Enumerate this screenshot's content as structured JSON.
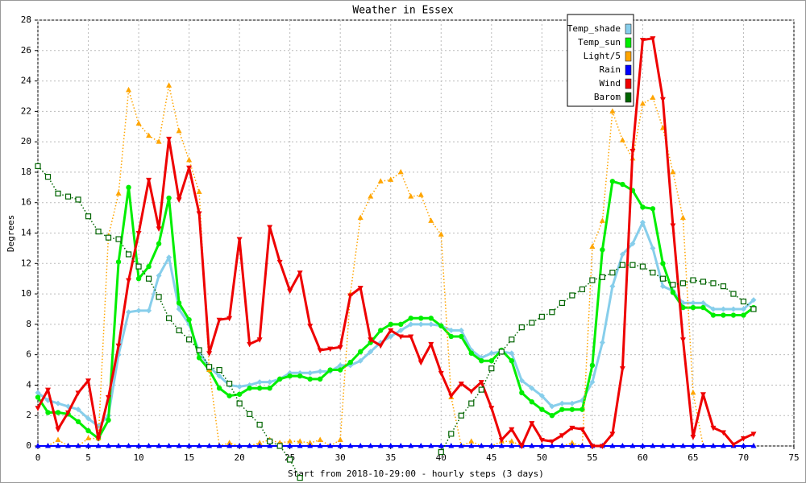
{
  "chart_data": {
    "type": "line",
    "title": "Weather in Essex",
    "x_label": "Start from 2018-10-29:00 - hourly steps (3 days)",
    "y_label": "Degrees",
    "x": [
      0,
      1,
      2,
      3,
      4,
      5,
      6,
      7,
      8,
      9,
      10,
      11,
      12,
      13,
      14,
      15,
      16,
      17,
      18,
      19,
      20,
      21,
      22,
      23,
      24,
      25,
      26,
      27,
      28,
      29,
      30,
      31,
      32,
      33,
      34,
      35,
      36,
      37,
      38,
      39,
      40,
      41,
      42,
      43,
      44,
      45,
      46,
      47,
      48,
      49,
      50,
      51,
      52,
      53,
      54,
      55,
      56,
      57,
      58,
      59,
      60,
      61,
      62,
      63,
      64,
      65,
      66,
      67,
      68,
      69,
      70,
      71
    ],
    "xlim": [
      0,
      75
    ],
    "xticks": [
      0,
      5,
      10,
      15,
      20,
      25,
      30,
      35,
      40,
      45,
      50,
      55,
      60,
      65,
      70,
      75
    ],
    "ylim": [
      0,
      28
    ],
    "yticks": [
      0,
      2,
      4,
      6,
      8,
      10,
      12,
      14,
      16,
      18,
      20,
      22,
      24,
      26,
      28
    ],
    "grid": true,
    "legend": "top-right",
    "series": [
      {
        "name": "Temp_shade",
        "color": "#87ceeb",
        "marker": "diamond",
        "line_style": "solid",
        "values": [
          3.5,
          3.0,
          2.8,
          2.6,
          2.4,
          1.8,
          1.3,
          2.0,
          6.0,
          8.8,
          8.9,
          8.9,
          11.2,
          12.4,
          9.0,
          8.0,
          6.2,
          5.2,
          4.6,
          4.0,
          3.9,
          4.0,
          4.2,
          4.2,
          4.4,
          4.8,
          4.8,
          4.8,
          4.9,
          4.9,
          5.3,
          5.3,
          5.6,
          6.2,
          6.8,
          7.2,
          7.6,
          8.0,
          8.0,
          8.0,
          7.9,
          7.6,
          7.6,
          6.3,
          5.8,
          6.1,
          6.2,
          6.1,
          4.3,
          3.8,
          3.3,
          2.6,
          2.8,
          2.8,
          3.0,
          4.2,
          6.8,
          10.5,
          12.6,
          13.3,
          14.7,
          13.0,
          10.5,
          10.2,
          9.4,
          9.4,
          9.4,
          9.0,
          9.0,
          9.0,
          9.0,
          9.6
        ]
      },
      {
        "name": "Temp_sun",
        "color": "#00ee00",
        "marker": "circle",
        "line_style": "solid",
        "values": [
          3.2,
          2.2,
          2.2,
          2.1,
          1.6,
          1.0,
          0.5,
          1.7,
          12.1,
          17.0,
          11.0,
          11.8,
          13.3,
          16.3,
          9.4,
          8.3,
          5.8,
          5.0,
          3.8,
          3.3,
          3.4,
          3.8,
          3.8,
          3.8,
          4.4,
          4.6,
          4.6,
          4.4,
          4.4,
          5.0,
          5.0,
          5.5,
          6.2,
          6.8,
          7.6,
          8.0,
          8.0,
          8.4,
          8.4,
          8.4,
          7.9,
          7.2,
          7.2,
          6.1,
          5.6,
          5.6,
          6.3,
          5.6,
          3.5,
          2.9,
          2.4,
          2.0,
          2.4,
          2.4,
          2.4,
          5.3,
          12.9,
          17.4,
          17.2,
          16.8,
          15.7,
          15.6,
          12.0,
          10.1,
          9.1,
          9.1,
          9.1,
          8.6,
          8.6,
          8.6,
          8.6,
          9.1
        ]
      },
      {
        "name": "Light/5",
        "color": "#ffa500",
        "marker": "triangle-up",
        "line_style": "dotted",
        "values": [
          0,
          0,
          0.4,
          0,
          0,
          0.5,
          0.5,
          13.8,
          16.6,
          23.4,
          21.2,
          20.4,
          20.0,
          23.7,
          20.7,
          18.8,
          16.7,
          5.0,
          0,
          0.2,
          0,
          0,
          0.2,
          0.4,
          0.2,
          0.3,
          0.3,
          0.2,
          0.4,
          0,
          0.4,
          10.0,
          15.0,
          16.4,
          17.4,
          17.5,
          18.0,
          16.4,
          16.5,
          14.8,
          13.9,
          3.2,
          0,
          0.3,
          0,
          0,
          0.3,
          0.3,
          0,
          0,
          0,
          0,
          0,
          0.2,
          0,
          13.1,
          14.8,
          22.0,
          20.1,
          18.9,
          22.5,
          22.9,
          20.9,
          18.0,
          15.0,
          3.5,
          0,
          0,
          0,
          0,
          0,
          0
        ]
      },
      {
        "name": "Rain",
        "color": "#0000ff",
        "marker": "triangle-up",
        "line_style": "solid",
        "values": [
          0,
          0,
          0,
          0,
          0,
          0,
          0,
          0,
          0,
          0,
          0,
          0,
          0,
          0,
          0,
          0,
          0,
          0,
          0,
          0,
          0,
          0,
          0,
          0,
          0,
          0,
          0,
          0,
          0,
          0,
          0,
          0,
          0,
          0,
          0,
          0,
          0,
          0,
          0,
          0,
          0,
          0,
          0,
          0,
          0,
          0,
          0,
          0,
          0,
          0,
          0,
          0,
          0,
          0,
          0,
          0,
          0,
          0,
          0,
          0,
          0,
          0,
          0,
          0,
          0,
          0,
          0,
          0,
          0,
          0,
          0,
          0
        ]
      },
      {
        "name": "Wind",
        "color": "#ee0000",
        "marker": "triangle-down",
        "line_style": "solid",
        "values": [
          2.5,
          3.7,
          1.1,
          2.2,
          3.5,
          4.3,
          0.5,
          3.2,
          6.6,
          10.9,
          14.0,
          17.5,
          14.3,
          20.2,
          16.2,
          18.3,
          15.3,
          6.1,
          8.3,
          8.4,
          13.6,
          6.7,
          7.0,
          14.4,
          12.1,
          10.2,
          11.4,
          7.9,
          6.3,
          6.4,
          6.5,
          9.9,
          10.4,
          7.0,
          6.6,
          7.6,
          7.2,
          7.2,
          5.5,
          6.7,
          4.8,
          3.3,
          4.1,
          3.6,
          4.2,
          2.5,
          0.4,
          1.1,
          0,
          1.5,
          0.4,
          0.3,
          0.7,
          1.2,
          1.1,
          0,
          0,
          0.8,
          5.1,
          19.4,
          26.7,
          26.8,
          22.8,
          14.5,
          7.0,
          0.6,
          3.4,
          1.2,
          0.9,
          0.1,
          0.5,
          0.8
        ]
      },
      {
        "name": "Barom",
        "color": "#006400",
        "marker": "square",
        "line_style": "dotted",
        "values": [
          18.4,
          17.7,
          16.6,
          16.4,
          16.2,
          15.1,
          14.1,
          13.7,
          13.6,
          12.6,
          11.8,
          11.0,
          9.8,
          8.4,
          7.6,
          7.0,
          6.3,
          5.2,
          5.0,
          4.1,
          2.8,
          2.1,
          1.4,
          0.3,
          0.0,
          -0.9,
          -2.1,
          null,
          null,
          null,
          null,
          null,
          null,
          null,
          null,
          null,
          null,
          null,
          null,
          null,
          -0.4,
          0.8,
          2.0,
          2.8,
          3.7,
          5.1,
          6.2,
          7.0,
          7.8,
          8.1,
          8.5,
          8.8,
          9.4,
          9.9,
          10.3,
          10.9,
          11.1,
          11.4,
          11.9,
          11.9,
          11.8,
          11.4,
          11.0,
          10.6,
          10.7,
          10.9,
          10.8,
          10.7,
          10.5,
          10.0,
          9.5,
          9.0
        ]
      }
    ]
  }
}
